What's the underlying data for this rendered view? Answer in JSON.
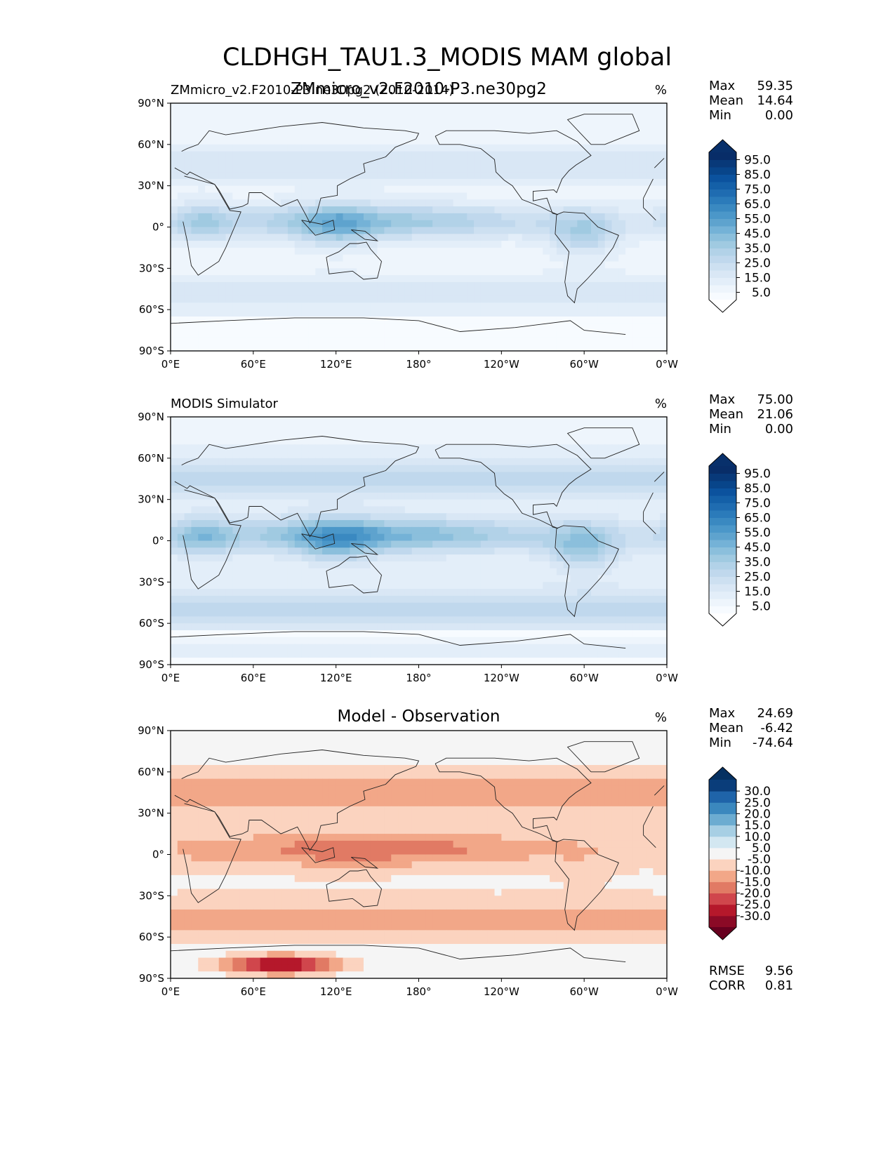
{
  "figure": {
    "title": "CLDHGH_TAU1.3_MODIS MAM global"
  },
  "chart_data": [
    {
      "type": "heatmap",
      "title": "",
      "left_title": "ZMmicro_v2.F2010-P3.ne30pg2 (2010-2014)",
      "center_title": "ZMmicro_v2.F2010-P3.ne30pg2",
      "units": "%",
      "stats": [
        {
          "label": "Max",
          "value": "59.35"
        },
        {
          "label": "Mean",
          "value": "14.64"
        },
        {
          "label": "Min",
          "value": "0.00"
        }
      ],
      "colorbar": {
        "colormap": "Blues",
        "levels": [
          0,
          5,
          10,
          15,
          20,
          25,
          30,
          35,
          40,
          45,
          50,
          55,
          60,
          65,
          70,
          75,
          80,
          85,
          90,
          95,
          100
        ],
        "tick_labels": [
          "5.0",
          "15.0",
          "25.0",
          "35.0",
          "45.0",
          "55.0",
          "65.0",
          "75.0",
          "85.0",
          "95.0"
        ],
        "extend": "both"
      },
      "field": {
        "ITCZ": 38,
        "storm": 18,
        "subtrop": 6,
        "continental": 44,
        "antarctic": 0
      },
      "x_ticks": [
        "0°E",
        "60°E",
        "120°E",
        "180°",
        "120°W",
        "60°W",
        "0°W"
      ],
      "y_ticks": [
        "90°N",
        "60°N",
        "30°N",
        "0°",
        "30°S",
        "60°S",
        "90°S"
      ],
      "xlim": [
        0,
        360
      ],
      "ylim": [
        -90,
        90
      ]
    },
    {
      "type": "heatmap",
      "title": "",
      "left_title": "MODIS Simulator",
      "center_title": "",
      "units": "%",
      "stats": [
        {
          "label": "Max",
          "value": "75.00"
        },
        {
          "label": "Mean",
          "value": "21.06"
        },
        {
          "label": "Min",
          "value": "0.00"
        }
      ],
      "colorbar": {
        "colormap": "Blues",
        "levels": [
          0,
          5,
          10,
          15,
          20,
          25,
          30,
          35,
          40,
          45,
          50,
          55,
          60,
          65,
          70,
          75,
          80,
          85,
          90,
          95,
          100
        ],
        "tick_labels": [
          "5.0",
          "15.0",
          "25.0",
          "35.0",
          "45.0",
          "55.0",
          "65.0",
          "75.0",
          "85.0",
          "95.0"
        ],
        "extend": "both"
      },
      "field": {
        "ITCZ": 46,
        "storm": 27,
        "subtrop": 9,
        "continental": 52,
        "antarctic": 14
      },
      "x_ticks": [
        "0°E",
        "60°E",
        "120°E",
        "180°",
        "120°W",
        "60°W",
        "0°W"
      ],
      "y_ticks": [
        "90°N",
        "60°N",
        "30°N",
        "0°",
        "30°S",
        "60°S",
        "90°S"
      ],
      "xlim": [
        0,
        360
      ],
      "ylim": [
        -90,
        90
      ]
    },
    {
      "type": "heatmap",
      "title": "",
      "left_title": "",
      "center_title": "Model - Observation",
      "units": "%",
      "stats": [
        {
          "label": "Max",
          "value": "24.69"
        },
        {
          "label": "Mean",
          "value": "-6.42"
        },
        {
          "label": "Min",
          "value": "-74.64"
        }
      ],
      "bottom_stats": [
        {
          "label": "RMSE",
          "value": "9.56"
        },
        {
          "label": "CORR",
          "value": "0.81"
        }
      ],
      "colorbar": {
        "colormap": "RdBu",
        "levels": [
          -35,
          -30,
          -25,
          -20,
          -15,
          -10,
          -5,
          5,
          10,
          15,
          20,
          25,
          30,
          35
        ],
        "tick_labels": [
          "-30.0",
          "-25.0",
          "-20.0",
          "-15.0",
          "-10.0",
          "-5.0",
          "5.0",
          "10.0",
          "15.0",
          "20.0",
          "25.0",
          "30.0"
        ],
        "extend": "both"
      },
      "field": {
        "ITCZ": -18,
        "storm": -12,
        "subtrop": -4,
        "continental": -8,
        "antarctic": -30
      },
      "x_ticks": [
        "0°E",
        "60°E",
        "120°E",
        "180°",
        "120°W",
        "60°W",
        "0°W"
      ],
      "y_ticks": [
        "90°N",
        "60°N",
        "30°N",
        "0°",
        "30°S",
        "60°S",
        "90°S"
      ],
      "xlim": [
        0,
        360
      ],
      "ylim": [
        -90,
        90
      ]
    }
  ]
}
